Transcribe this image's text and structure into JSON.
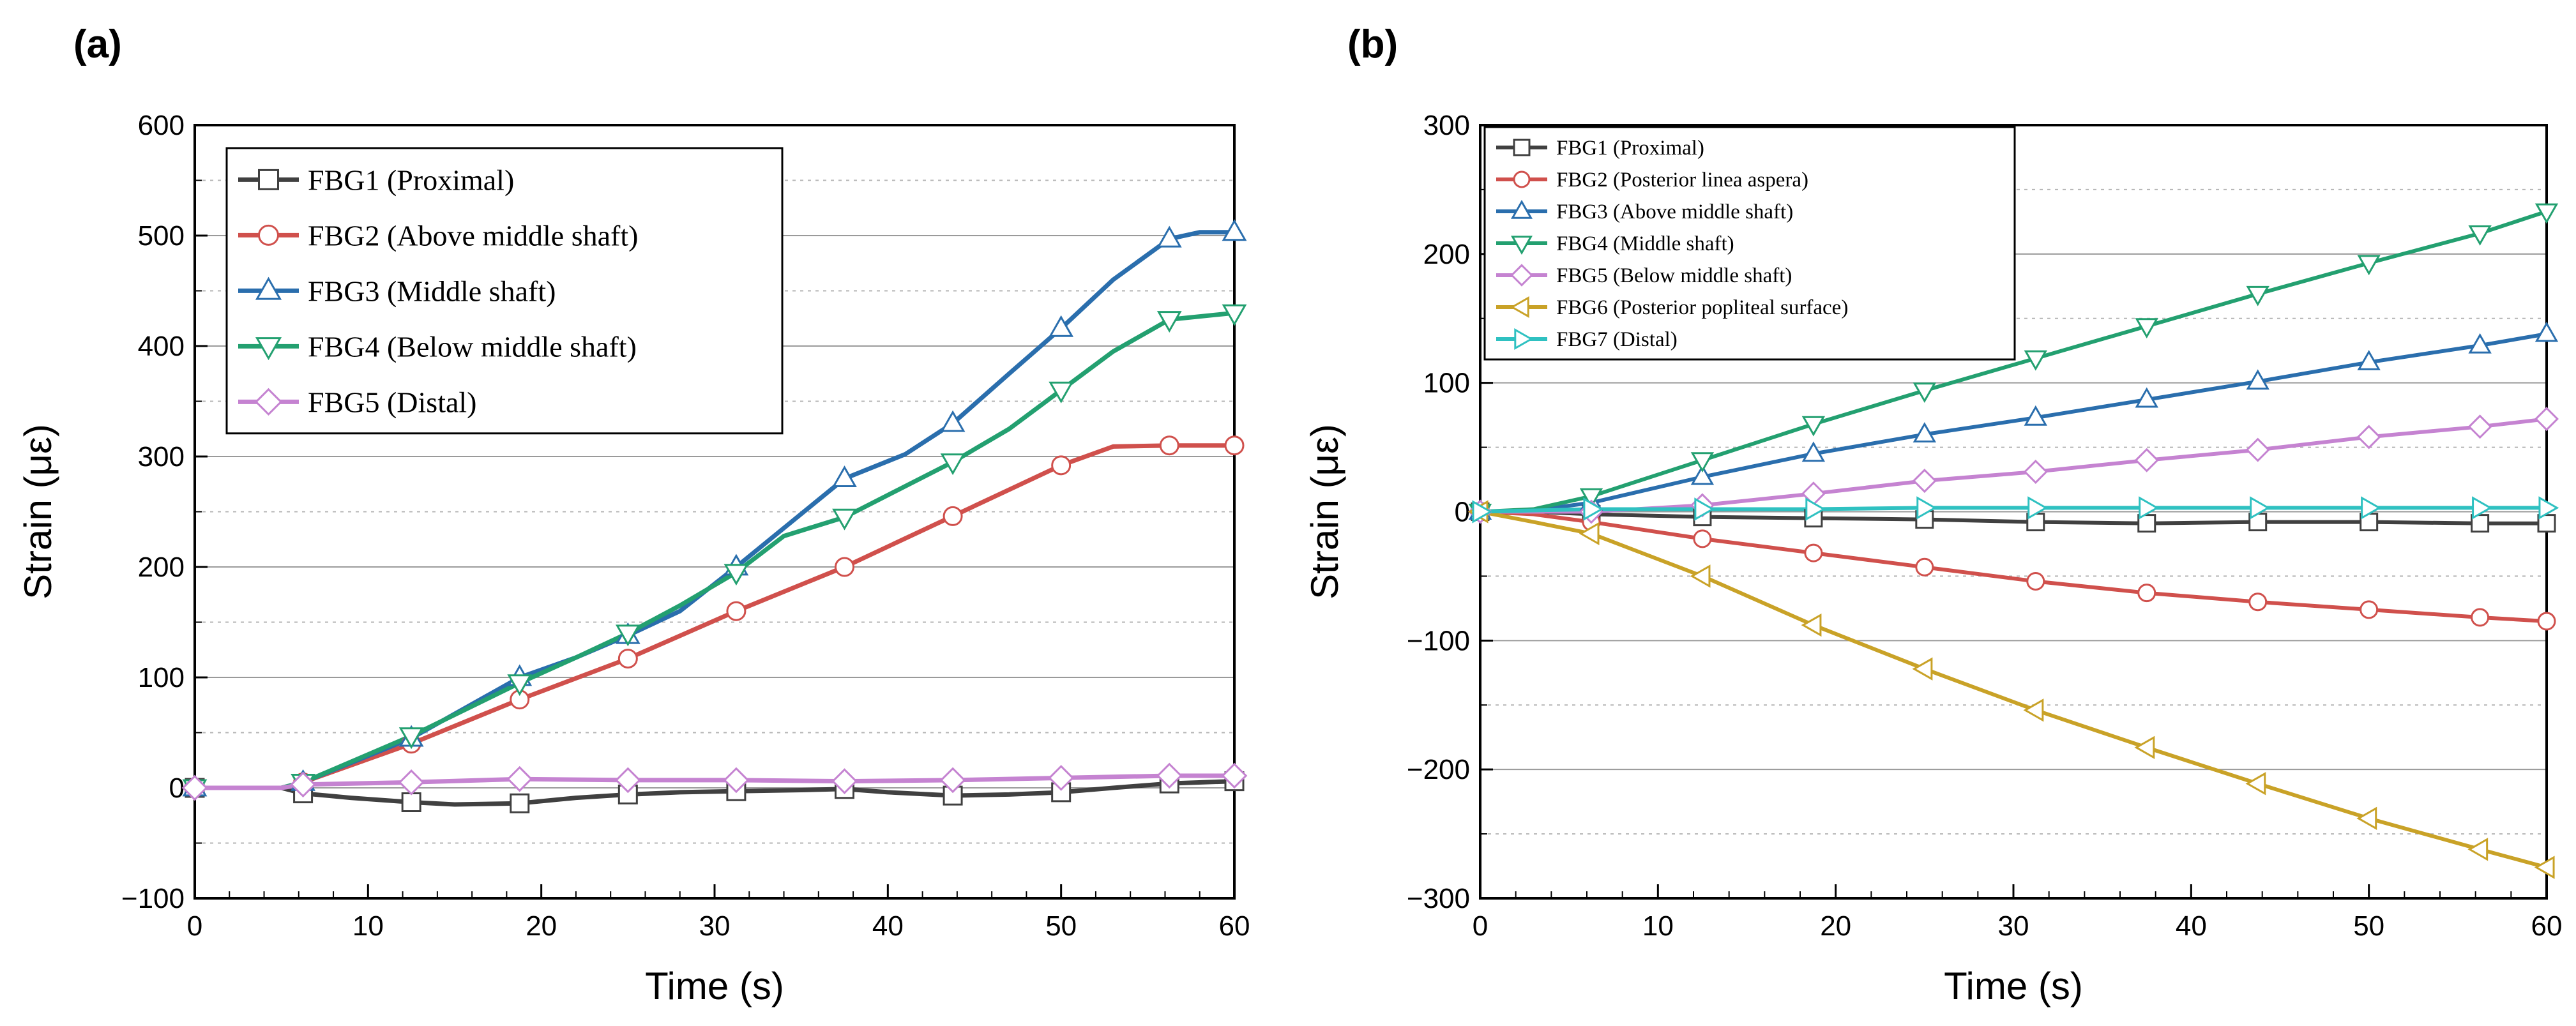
{
  "chart_data": [
    {
      "panel": "(a)",
      "type": "line",
      "title": "",
      "xlabel": "Time (s)",
      "ylabel": "Strain (με)",
      "xlim": [
        0,
        60
      ],
      "ylim": [
        -100,
        600
      ],
      "xticks": [
        0,
        10,
        20,
        30,
        40,
        50,
        60
      ],
      "yticks": [
        -100,
        0,
        100,
        200,
        300,
        400,
        500,
        600
      ],
      "tick_labels_y": [
        "−100",
        "0",
        "100",
        "200",
        "300",
        "400",
        "500",
        "600"
      ],
      "grid": "horizontal",
      "legend_position": "top-left",
      "series": [
        {
          "name": "FBG1 (Proximal)",
          "color": "#404040",
          "marker": "square",
          "x": [
            0,
            5,
            6.25,
            9,
            12.5,
            15,
            18.75,
            22,
            25,
            28,
            31.25,
            35,
            37.5,
            40,
            43.75,
            47,
            50,
            53,
            56.25,
            60
          ],
          "y": [
            0,
            0,
            -5,
            -9,
            -13,
            -15,
            -14,
            -9,
            -6,
            -4,
            -3,
            -2,
            -1,
            -4,
            -7,
            -6,
            -4,
            0,
            4,
            6
          ]
        },
        {
          "name": "FBG2 (Above middle shaft)",
          "color": "#d0504c",
          "marker": "circle",
          "x": [
            0,
            5,
            6.25,
            12.5,
            18.75,
            25,
            31.25,
            37.5,
            43.75,
            50,
            53,
            56.25,
            60
          ],
          "y": [
            0,
            0,
            5,
            40,
            80,
            117,
            160,
            200,
            246,
            292,
            309,
            310,
            310
          ]
        },
        {
          "name": "FBG3 (Middle shaft)",
          "color": "#2a6ead",
          "marker": "triangle-up",
          "x": [
            0,
            5,
            6.25,
            12.5,
            18.75,
            22,
            25,
            28,
            31.25,
            37.5,
            41,
            43.75,
            47,
            50,
            53,
            56.25,
            58,
            60
          ],
          "y": [
            0,
            0,
            5,
            45,
            100,
            118,
            138,
            160,
            200,
            280,
            302,
            330,
            375,
            416,
            460,
            497,
            503,
            503
          ]
        },
        {
          "name": "FBG4 (Below middle shaft)",
          "color": "#23a070",
          "marker": "triangle-down",
          "x": [
            0,
            5,
            6.25,
            12.5,
            18.75,
            22,
            25,
            28,
            31.25,
            34,
            37.5,
            40,
            43.75,
            47,
            50,
            53,
            56.25,
            60
          ],
          "y": [
            0,
            0,
            5,
            47,
            95,
            118,
            140,
            165,
            195,
            228,
            245,
            265,
            295,
            325,
            360,
            395,
            424,
            430
          ]
        },
        {
          "name": "FBG5 (Distal)",
          "color": "#c583d1",
          "marker": "diamond",
          "x": [
            0,
            5,
            6.25,
            12.5,
            18.75,
            25,
            31.25,
            37.5,
            43.75,
            50,
            56.25,
            60
          ],
          "y": [
            0,
            0,
            3,
            5,
            8,
            7,
            7,
            6,
            7,
            9,
            11,
            11
          ]
        }
      ]
    },
    {
      "panel": "(b)",
      "type": "line",
      "title": "",
      "xlabel": "Time (s)",
      "ylabel": "Strain (με)",
      "xlim": [
        0,
        60
      ],
      "ylim": [
        -300,
        300
      ],
      "xticks": [
        0,
        10,
        20,
        30,
        40,
        50,
        60
      ],
      "yticks": [
        -300,
        -200,
        -100,
        0,
        100,
        200,
        300
      ],
      "tick_labels_y": [
        "−300",
        "−200",
        "−100",
        "0",
        "100",
        "200",
        "300"
      ],
      "grid": "horizontal",
      "legend_position": "top-left",
      "series": [
        {
          "name": "FBG1 (Proximal)",
          "color": "#404040",
          "marker": "square",
          "x": [
            0,
            3,
            6.25,
            12.5,
            18.75,
            25,
            31.25,
            37.5,
            43.75,
            50,
            56.25,
            60
          ],
          "y": [
            0,
            0,
            -2,
            -4,
            -5,
            -6,
            -8,
            -9,
            -8,
            -8,
            -9,
            -9
          ]
        },
        {
          "name": "FBG2 (Posterior linea aspera)",
          "color": "#d0504c",
          "marker": "circle",
          "x": [
            0,
            3,
            6.25,
            12.5,
            18.75,
            25,
            31.25,
            37.5,
            43.75,
            50,
            56.25,
            60
          ],
          "y": [
            0,
            -2,
            -8,
            -21,
            -32,
            -43,
            -54,
            -63,
            -70,
            -76,
            -82,
            -85
          ]
        },
        {
          "name": "FBG3 (Above middle shaft)",
          "color": "#2a6ead",
          "marker": "triangle-up",
          "x": [
            0,
            3,
            6.25,
            12.5,
            18.75,
            25,
            31.25,
            37.5,
            43.75,
            50,
            56.25,
            60
          ],
          "y": [
            0,
            1,
            7,
            27,
            45,
            60,
            73,
            87,
            101,
            116,
            129,
            138
          ]
        },
        {
          "name": "FBG4 (Middle shaft)",
          "color": "#23a070",
          "marker": "triangle-down",
          "x": [
            0,
            3,
            6.25,
            12.5,
            18.75,
            25,
            31.25,
            37.5,
            43.75,
            50,
            56.25,
            60
          ],
          "y": [
            0,
            2,
            12,
            40,
            68,
            94,
            119,
            144,
            169,
            193,
            216,
            233
          ]
        },
        {
          "name": "FBG5 (Below middle shaft)",
          "color": "#c583d1",
          "marker": "diamond",
          "x": [
            0,
            3,
            6.25,
            12.5,
            18.75,
            25,
            31.25,
            37.5,
            43.75,
            50,
            56.25,
            60
          ],
          "y": [
            0,
            0,
            0,
            5,
            14,
            24,
            31,
            40,
            48,
            58,
            66,
            72
          ]
        },
        {
          "name": "FBG6 (Posterior popliteal surface)",
          "color": "#c9a227",
          "marker": "triangle-left",
          "x": [
            0,
            3,
            6.25,
            12.5,
            18.75,
            25,
            31.25,
            37.5,
            43.75,
            50,
            56.25,
            60
          ],
          "y": [
            0,
            -8,
            -17,
            -50,
            -88,
            -122,
            -154,
            -183,
            -211,
            -238,
            -262,
            -276
          ]
        },
        {
          "name": "FBG7 (Distal)",
          "color": "#2fc1c1",
          "marker": "triangle-right",
          "x": [
            0,
            3,
            6.25,
            12.5,
            18.75,
            25,
            31.25,
            37.5,
            43.75,
            50,
            56.25,
            60
          ],
          "y": [
            0,
            1,
            2,
            2,
            2,
            3,
            3,
            3,
            3,
            3,
            3,
            3
          ]
        }
      ]
    }
  ]
}
